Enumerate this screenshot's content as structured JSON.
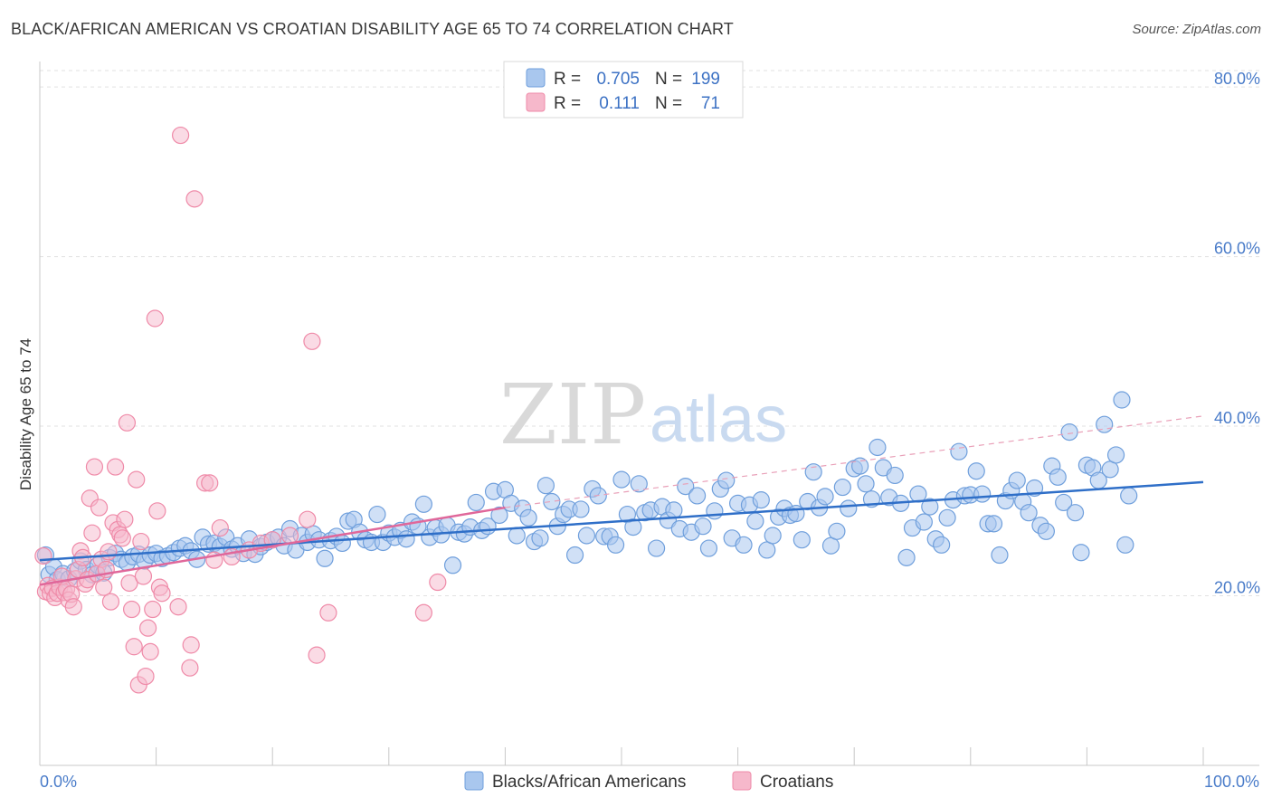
{
  "header": {
    "title": "BLACK/AFRICAN AMERICAN VS CROATIAN DISABILITY AGE 65 TO 74 CORRELATION CHART",
    "source": "Source: ZipAtlas.com"
  },
  "watermark": {
    "zip": "ZIP",
    "atlas": "atlas"
  },
  "legend": {
    "rows": [
      {
        "r_label": "R =",
        "r_value": "0.705",
        "n_label": "N =",
        "n_value": "199",
        "color": "#a9c7ee"
      },
      {
        "r_label": "R =",
        "r_value": "0.111",
        "n_label": "N =",
        "n_value": "71",
        "color": "#f6b8cb"
      }
    ]
  },
  "bottom_legend": [
    {
      "label": "Blacks/African Americans",
      "color": "#a9c7ee"
    },
    {
      "label": "Croatians",
      "color": "#f6b8cb"
    }
  ],
  "chart_data": {
    "type": "scatter",
    "ylabel": "Disability Age 65 to 74",
    "xlabel": "",
    "xlim": [
      0,
      100
    ],
    "ylim": [
      0,
      83
    ],
    "x_tick_labels": [
      "0.0%",
      "100.0%"
    ],
    "y_ticks": [
      20,
      40,
      60,
      80
    ],
    "y_tick_labels": [
      "20.0%",
      "40.0%",
      "60.0%",
      "80.0%"
    ],
    "grid": true,
    "legend_position": "top-center",
    "series": [
      {
        "name": "Blacks/African Americans",
        "color": "#a9c7ee",
        "stroke": "#6f9fdc",
        "trend": {
          "x": [
            0,
            100
          ],
          "y": [
            24.2,
            33.4
          ],
          "color": "#2f6fc8"
        },
        "points": [
          [
            0.5,
            24.8
          ],
          [
            0.8,
            22.5
          ],
          [
            1.2,
            23.4
          ],
          [
            1.5,
            21.9
          ],
          [
            2.0,
            22.6
          ],
          [
            2.5,
            22.0
          ],
          [
            3.0,
            22.9
          ],
          [
            3.5,
            24.1
          ],
          [
            4.0,
            23.1
          ],
          [
            4.5,
            22.5
          ],
          [
            5.0,
            23.6
          ],
          [
            5.5,
            22.7
          ],
          [
            6.0,
            24.5
          ],
          [
            6.5,
            25.0
          ],
          [
            7.0,
            24.3
          ],
          [
            7.5,
            23.9
          ],
          [
            8.0,
            24.6
          ],
          [
            8.5,
            24.9
          ],
          [
            9.0,
            24.1
          ],
          [
            9.5,
            24.8
          ],
          [
            10.0,
            25.0
          ],
          [
            10.5,
            24.4
          ],
          [
            11.0,
            24.7
          ],
          [
            11.5,
            25.1
          ],
          [
            12.0,
            25.6
          ],
          [
            12.5,
            25.9
          ],
          [
            13.0,
            25.3
          ],
          [
            13.5,
            24.3
          ],
          [
            14.0,
            26.9
          ],
          [
            14.5,
            26.1
          ],
          [
            15.0,
            26.2
          ],
          [
            15.5,
            25.8
          ],
          [
            16.0,
            26.9
          ],
          [
            16.5,
            25.5
          ],
          [
            17.0,
            25.9
          ],
          [
            17.5,
            25.0
          ],
          [
            18.0,
            26.7
          ],
          [
            18.5,
            24.9
          ],
          [
            19.0,
            25.8
          ],
          [
            19.5,
            26.3
          ],
          [
            20.0,
            26.6
          ],
          [
            20.5,
            26.9
          ],
          [
            21.0,
            25.9
          ],
          [
            21.5,
            27.9
          ],
          [
            22.0,
            25.4
          ],
          [
            22.5,
            27.1
          ],
          [
            23.0,
            26.3
          ],
          [
            23.5,
            27.3
          ],
          [
            24.0,
            26.6
          ],
          [
            24.5,
            24.4
          ],
          [
            25.0,
            26.5
          ],
          [
            25.5,
            27.0
          ],
          [
            26.0,
            26.2
          ],
          [
            26.5,
            28.8
          ],
          [
            27.0,
            29.0
          ],
          [
            27.5,
            27.5
          ],
          [
            28.0,
            26.6
          ],
          [
            28.5,
            26.3
          ],
          [
            29.0,
            29.6
          ],
          [
            29.5,
            26.3
          ],
          [
            30.0,
            27.4
          ],
          [
            30.5,
            26.9
          ],
          [
            31.0,
            27.7
          ],
          [
            31.5,
            26.7
          ],
          [
            32.0,
            28.7
          ],
          [
            32.5,
            28.2
          ],
          [
            33.0,
            30.8
          ],
          [
            33.5,
            26.9
          ],
          [
            34.0,
            28.0
          ],
          [
            34.5,
            27.2
          ],
          [
            35.0,
            28.3
          ],
          [
            35.5,
            23.6
          ],
          [
            36.0,
            27.5
          ],
          [
            36.5,
            27.3
          ],
          [
            37.0,
            28.1
          ],
          [
            37.5,
            31.0
          ],
          [
            38.0,
            27.7
          ],
          [
            38.5,
            28.2
          ],
          [
            39.0,
            32.3
          ],
          [
            39.5,
            29.5
          ],
          [
            40.0,
            32.5
          ],
          [
            40.5,
            30.9
          ],
          [
            41.0,
            27.1
          ],
          [
            41.5,
            30.3
          ],
          [
            42.0,
            29.2
          ],
          [
            42.5,
            26.4
          ],
          [
            43.0,
            26.8
          ],
          [
            43.5,
            33.0
          ],
          [
            44.0,
            31.1
          ],
          [
            44.5,
            28.2
          ],
          [
            45.0,
            29.6
          ],
          [
            45.5,
            30.2
          ],
          [
            46.0,
            24.8
          ],
          [
            46.5,
            30.2
          ],
          [
            47.0,
            27.1
          ],
          [
            47.5,
            32.6
          ],
          [
            48.0,
            31.8
          ],
          [
            48.5,
            27.0
          ],
          [
            49.0,
            27.0
          ],
          [
            49.5,
            26.0
          ],
          [
            50.0,
            33.7
          ],
          [
            50.5,
            29.6
          ],
          [
            51.0,
            28.1
          ],
          [
            51.5,
            33.2
          ],
          [
            52.0,
            29.8
          ],
          [
            52.5,
            30.1
          ],
          [
            53.0,
            25.6
          ],
          [
            53.5,
            30.5
          ],
          [
            54.0,
            28.9
          ],
          [
            54.5,
            30.1
          ],
          [
            55.0,
            27.9
          ],
          [
            55.5,
            32.9
          ],
          [
            56.0,
            27.5
          ],
          [
            56.5,
            31.8
          ],
          [
            57.0,
            28.2
          ],
          [
            57.5,
            25.6
          ],
          [
            58.0,
            30.0
          ],
          [
            58.5,
            32.6
          ],
          [
            59.0,
            33.6
          ],
          [
            59.5,
            26.8
          ],
          [
            60.0,
            30.9
          ],
          [
            60.5,
            26.0
          ],
          [
            61.0,
            30.7
          ],
          [
            61.5,
            28.8
          ],
          [
            62.0,
            31.3
          ],
          [
            62.5,
            25.4
          ],
          [
            63.0,
            27.1
          ],
          [
            63.5,
            29.3
          ],
          [
            64.0,
            30.3
          ],
          [
            64.5,
            29.5
          ],
          [
            65.0,
            29.7
          ],
          [
            65.5,
            26.6
          ],
          [
            66.0,
            31.1
          ],
          [
            66.5,
            34.6
          ],
          [
            67.0,
            30.4
          ],
          [
            67.5,
            31.7
          ],
          [
            68.0,
            25.9
          ],
          [
            68.5,
            27.6
          ],
          [
            69.0,
            32.8
          ],
          [
            69.5,
            30.3
          ],
          [
            70.0,
            35.0
          ],
          [
            70.5,
            35.3
          ],
          [
            71.0,
            33.2
          ],
          [
            71.5,
            31.4
          ],
          [
            72.0,
            37.5
          ],
          [
            72.5,
            35.1
          ],
          [
            73.0,
            31.6
          ],
          [
            73.5,
            34.2
          ],
          [
            74.0,
            30.9
          ],
          [
            74.5,
            24.5
          ],
          [
            75.0,
            28.0
          ],
          [
            75.5,
            32.0
          ],
          [
            76.0,
            28.7
          ],
          [
            76.5,
            30.5
          ],
          [
            77.0,
            26.7
          ],
          [
            77.5,
            26.0
          ],
          [
            78.0,
            29.2
          ],
          [
            78.5,
            31.3
          ],
          [
            79.0,
            37.0
          ],
          [
            79.5,
            31.8
          ],
          [
            80.0,
            31.9
          ],
          [
            80.5,
            34.7
          ],
          [
            81.0,
            32.0
          ],
          [
            81.5,
            28.5
          ],
          [
            82.0,
            28.5
          ],
          [
            82.5,
            24.8
          ],
          [
            83.0,
            31.2
          ],
          [
            83.5,
            32.4
          ],
          [
            84.0,
            33.6
          ],
          [
            84.5,
            31.1
          ],
          [
            85.0,
            29.8
          ],
          [
            85.5,
            32.7
          ],
          [
            86.0,
            28.3
          ],
          [
            86.5,
            27.6
          ],
          [
            87.0,
            35.3
          ],
          [
            87.5,
            34.0
          ],
          [
            88.0,
            31.0
          ],
          [
            88.5,
            39.3
          ],
          [
            89.0,
            29.8
          ],
          [
            89.5,
            25.1
          ],
          [
            90.0,
            35.4
          ],
          [
            90.5,
            35.1
          ],
          [
            91.0,
            33.6
          ],
          [
            91.5,
            40.2
          ],
          [
            92.0,
            34.9
          ],
          [
            92.5,
            36.6
          ],
          [
            93.0,
            43.1
          ],
          [
            93.3,
            26.0
          ],
          [
            93.6,
            31.8
          ]
        ]
      },
      {
        "name": "Croatians",
        "color": "#f6b8cb",
        "stroke": "#ef8aa8",
        "trend": {
          "x": [
            0,
            40
          ],
          "y": [
            21.3,
            30.4
          ],
          "color": "#e0679a"
        },
        "trend_ext": {
          "x": [
            40,
            100
          ],
          "y": [
            30.4,
            41.2
          ]
        },
        "points": [
          [
            0.3,
            24.7
          ],
          [
            0.5,
            20.5
          ],
          [
            0.7,
            21.2
          ],
          [
            0.9,
            20.3
          ],
          [
            1.1,
            20.9
          ],
          [
            1.3,
            19.8
          ],
          [
            1.5,
            20.3
          ],
          [
            1.7,
            21.0
          ],
          [
            1.9,
            22.3
          ],
          [
            2.1,
            20.4
          ],
          [
            2.3,
            20.8
          ],
          [
            2.5,
            19.5
          ],
          [
            2.7,
            20.2
          ],
          [
            2.9,
            18.7
          ],
          [
            3.1,
            22.0
          ],
          [
            3.3,
            23.1
          ],
          [
            3.5,
            25.3
          ],
          [
            3.7,
            24.5
          ],
          [
            3.9,
            21.4
          ],
          [
            4.1,
            21.9
          ],
          [
            4.3,
            31.5
          ],
          [
            4.5,
            27.4
          ],
          [
            4.7,
            35.2
          ],
          [
            4.9,
            22.6
          ],
          [
            5.1,
            30.4
          ],
          [
            5.3,
            24.3
          ],
          [
            5.5,
            21.0
          ],
          [
            5.7,
            23.1
          ],
          [
            5.9,
            25.2
          ],
          [
            6.1,
            19.3
          ],
          [
            6.3,
            28.6
          ],
          [
            6.5,
            35.2
          ],
          [
            6.7,
            27.8
          ],
          [
            6.9,
            27.2
          ],
          [
            7.1,
            26.8
          ],
          [
            7.3,
            29.0
          ],
          [
            7.5,
            40.4
          ],
          [
            7.7,
            21.5
          ],
          [
            7.9,
            18.4
          ],
          [
            8.1,
            14.0
          ],
          [
            8.3,
            33.7
          ],
          [
            8.5,
            9.5
          ],
          [
            8.7,
            26.4
          ],
          [
            8.9,
            22.3
          ],
          [
            9.1,
            10.5
          ],
          [
            9.3,
            16.2
          ],
          [
            9.5,
            13.4
          ],
          [
            9.7,
            18.4
          ],
          [
            9.9,
            52.7
          ],
          [
            10.1,
            30.0
          ],
          [
            10.3,
            21.0
          ],
          [
            10.5,
            20.3
          ],
          [
            11.9,
            18.7
          ],
          [
            12.1,
            74.3
          ],
          [
            12.9,
            11.5
          ],
          [
            13.0,
            14.2
          ],
          [
            13.3,
            66.8
          ],
          [
            14.2,
            33.3
          ],
          [
            14.6,
            33.3
          ],
          [
            15.0,
            24.2
          ],
          [
            15.5,
            28.0
          ],
          [
            16.5,
            24.6
          ],
          [
            18.0,
            25.4
          ],
          [
            19.0,
            26.2
          ],
          [
            20.0,
            26.6
          ],
          [
            21.5,
            27.1
          ],
          [
            23.0,
            29.0
          ],
          [
            23.4,
            50.0
          ],
          [
            23.8,
            13.0
          ],
          [
            24.8,
            18.0
          ],
          [
            33.0,
            18.0
          ],
          [
            34.2,
            21.6
          ]
        ]
      }
    ]
  }
}
